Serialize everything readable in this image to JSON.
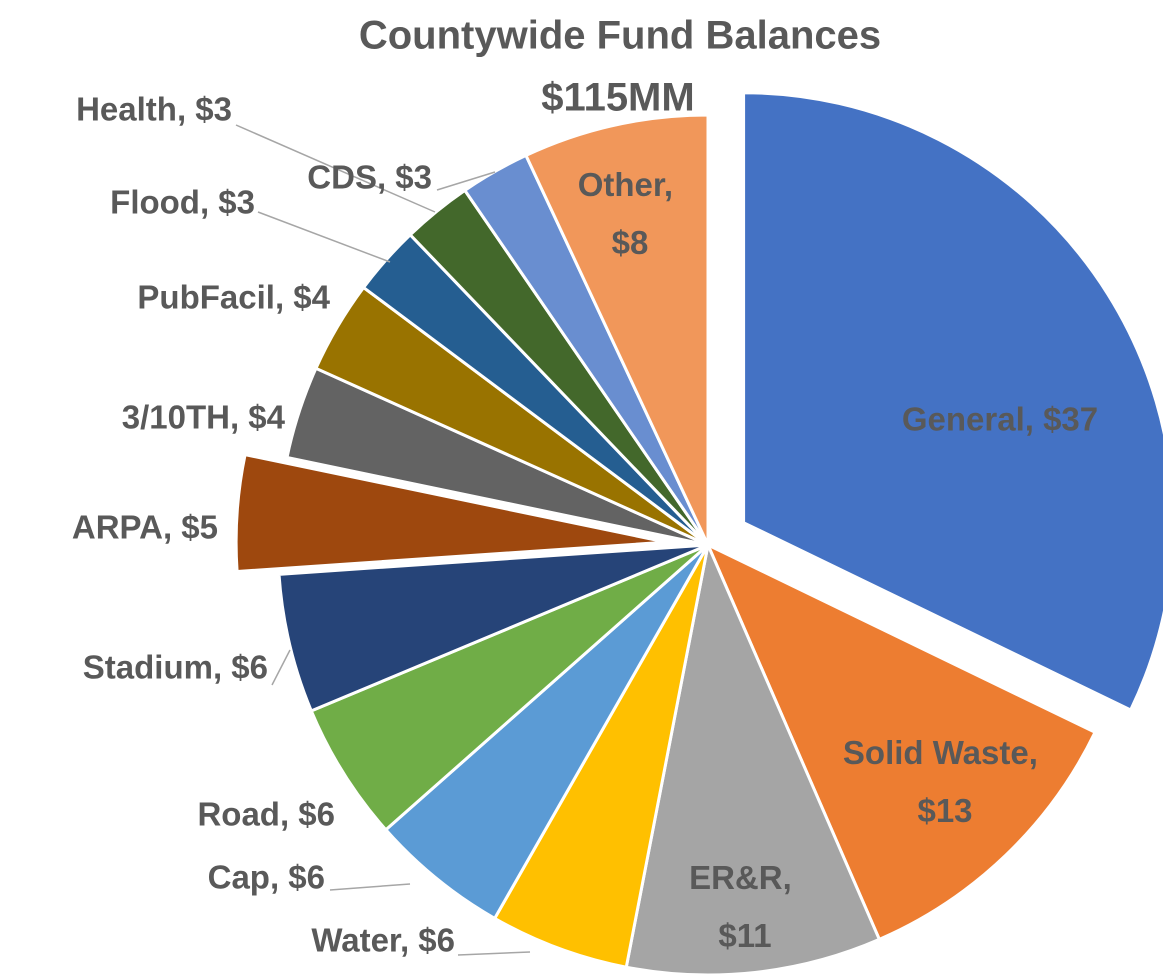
{
  "chart_data": {
    "type": "pie",
    "title": "Countywide Fund Balances",
    "subtitle": "$115MM",
    "values": [
      37,
      13,
      11,
      6,
      6,
      6,
      6,
      5,
      4,
      4,
      3,
      3,
      3,
      8
    ],
    "value_labels": [
      "General, $37",
      "Solid Waste, $13",
      "ER&R, $11",
      "Water, $6",
      "Cap, $6",
      "Road, $6",
      "Stadium, $6",
      "ARPA, $5",
      "3/10TH, $4",
      "PubFacil, $4",
      "Flood, $3",
      "Health, $3",
      "CDS, $3",
      "Other, $8"
    ],
    "colors": [
      "#4472c4",
      "#ed7d31",
      "#a5a5a5",
      "#ffc000",
      "#5b9bd5",
      "#70ad47",
      "#264478",
      "#9e480e",
      "#636363",
      "#997300",
      "#255e91",
      "#43682b",
      "#698ed0",
      "#f1975a"
    ],
    "exploded": [
      true,
      false,
      false,
      false,
      false,
      false,
      false,
      true,
      false,
      false,
      false,
      false,
      false,
      false
    ]
  }
}
